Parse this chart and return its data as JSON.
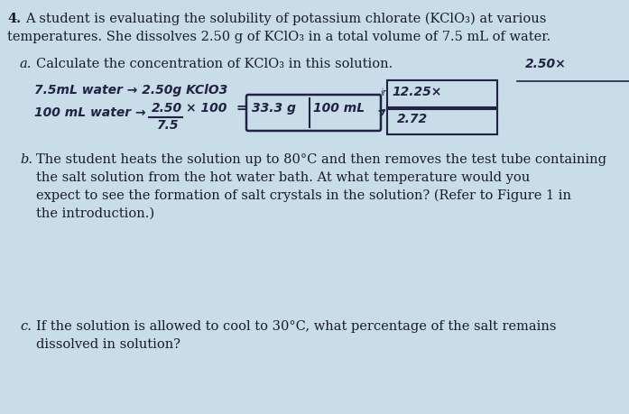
{
  "bg_color": "#c8dde8",
  "text_color": "#1a1a2e",
  "hand_color": "#222244",
  "figsize": [
    6.97,
    4.59
  ],
  "dpi": 100,
  "question_num": "4.",
  "title_line1": "A student is evaluating the solubility of potassium chlorate (KClO₃) at various",
  "title_line2": "temperatures. She dissolves 2.50 g of KClO₃ in a total volume of 7.5 mL of water.",
  "part_a_label": "a.",
  "part_a_text": "Calculate the concentration of KClO₃ in this solution.",
  "hw_line1": "7.5mL water → 2.50g KClO3",
  "hw_line2a": "100 mL water →",
  "hw_num": "2.50",
  "hw_denom": "7.5",
  "hw_times": "× 100",
  "hw_equals": "=",
  "box1_text1": "33.3 g",
  "box1_text2": "100 mL",
  "tr_text1": "2.50×",
  "tr_text2": "12.25×",
  "tr_text3": "2.72",
  "part_b_label": "b.",
  "part_b_line1": "The student heats the solution up to 80°C and then removes the test tube containing",
  "part_b_line2": "the salt solution from the hot water bath. At what temperature would you",
  "part_b_line3": "expect to see the formation of salt crystals in the solution? (Refer to Figure 1 in",
  "part_b_line4": "the introduction.)",
  "part_c_label": "c.",
  "part_c_line1": "If the solution is allowed to cool to 30°C, what percentage of the salt remains",
  "part_c_line2": "dissolved in solution?"
}
